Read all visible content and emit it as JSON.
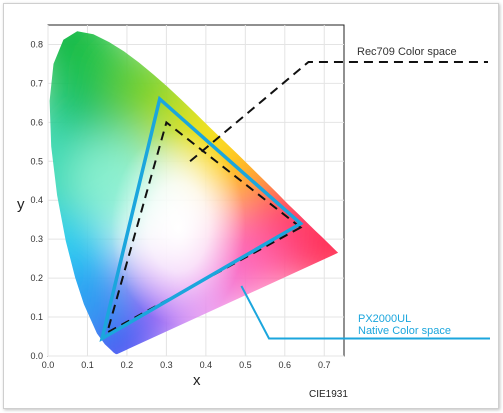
{
  "chart_data": {
    "type": "scatter",
    "title": "",
    "xlabel": "x",
    "ylabel": "y",
    "footer": "CIE1931",
    "xlim": [
      0.0,
      0.75
    ],
    "ylim": [
      0.0,
      0.85
    ],
    "x_ticks": [
      "0.0",
      "0.1",
      "0.2",
      "0.3",
      "0.4",
      "0.5",
      "0.6",
      "0.7"
    ],
    "y_ticks": [
      "0.0",
      "0.1",
      "0.2",
      "0.3",
      "0.4",
      "0.5",
      "0.6",
      "0.7",
      "0.8"
    ],
    "grid": true,
    "spectral_locus": [
      [
        0.175,
        0.005
      ],
      [
        0.172,
        0.005
      ],
      [
        0.166,
        0.009
      ],
      [
        0.161,
        0.014
      ],
      [
        0.144,
        0.03
      ],
      [
        0.124,
        0.058
      ],
      [
        0.091,
        0.133
      ],
      [
        0.069,
        0.201
      ],
      [
        0.045,
        0.295
      ],
      [
        0.023,
        0.413
      ],
      [
        0.008,
        0.538
      ],
      [
        0.004,
        0.655
      ],
      [
        0.014,
        0.75
      ],
      [
        0.039,
        0.812
      ],
      [
        0.074,
        0.834
      ],
      [
        0.115,
        0.826
      ],
      [
        0.155,
        0.806
      ],
      [
        0.193,
        0.782
      ],
      [
        0.23,
        0.754
      ],
      [
        0.266,
        0.724
      ],
      [
        0.302,
        0.692
      ],
      [
        0.337,
        0.659
      ],
      [
        0.373,
        0.624
      ],
      [
        0.408,
        0.589
      ],
      [
        0.444,
        0.554
      ],
      [
        0.479,
        0.52
      ],
      [
        0.512,
        0.487
      ],
      [
        0.547,
        0.452
      ],
      [
        0.579,
        0.42
      ],
      [
        0.608,
        0.39
      ],
      [
        0.635,
        0.364
      ],
      [
        0.658,
        0.341
      ],
      [
        0.677,
        0.322
      ],
      [
        0.692,
        0.308
      ],
      [
        0.705,
        0.295
      ],
      [
        0.714,
        0.286
      ],
      [
        0.723,
        0.277
      ],
      [
        0.735,
        0.265
      ]
    ],
    "series": [
      {
        "name": "Rec709 Color space",
        "style": "dashed",
        "color": "#111111",
        "points": [
          [
            0.64,
            0.33
          ],
          [
            0.3,
            0.6
          ],
          [
            0.15,
            0.06
          ]
        ]
      },
      {
        "name": "PX2000UL Native Color space",
        "style": "solid",
        "color": "#1ba6dd",
        "points": [
          [
            0.64,
            0.34
          ],
          [
            0.283,
            0.66
          ],
          [
            0.137,
            0.045
          ]
        ]
      }
    ]
  },
  "annotations": {
    "rec709": "Rec709 Color space",
    "px_line1": "PX2000UL",
    "px_line2": "Native Color space"
  },
  "colors": {
    "rec709": "#111111",
    "px2000ul": "#1ba6dd",
    "grid": "#e4e4e4"
  }
}
